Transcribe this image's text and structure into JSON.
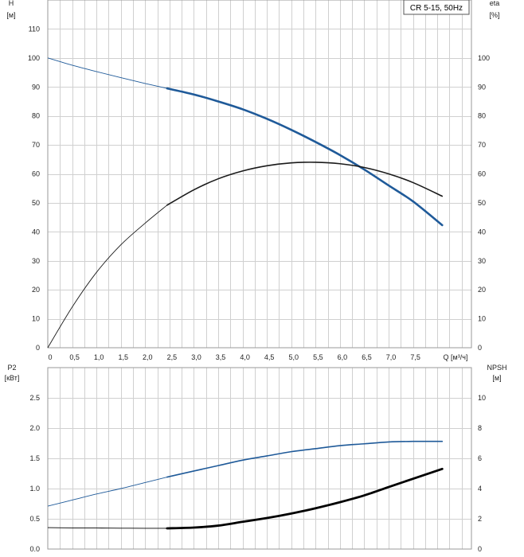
{
  "chart_data": [
    {
      "type": "line",
      "title": "",
      "legend": "CR 5-15, 50Hz",
      "legend_position": "top-right",
      "xlabel": "Q [м³/ч]",
      "ylabel_left": "H",
      "ylabel_left_unit": "[м]",
      "ylabel_right": "eta",
      "ylabel_right_unit": "[%]",
      "xlim": [
        0,
        8.7
      ],
      "ylim_left": [
        0,
        120
      ],
      "ylim_right": [
        0,
        120
      ],
      "x_ticks": [
        "0",
        "0,5",
        "1,0",
        "1,5",
        "2,0",
        "2,5",
        "3,0",
        "3,5",
        "4,0",
        "4,5",
        "5,0",
        "5,5",
        "6,0",
        "6,5",
        "7,0",
        "7,5"
      ],
      "x_tick_values": [
        0,
        0.5,
        1.0,
        1.5,
        2.0,
        2.5,
        3.0,
        3.5,
        4.0,
        4.5,
        5.0,
        5.5,
        6.0,
        6.5,
        7.0,
        7.5
      ],
      "y_ticks_left": [
        "0",
        "10",
        "20",
        "30",
        "40",
        "50",
        "60",
        "70",
        "80",
        "90",
        "100",
        "110"
      ],
      "y_ticks_right": [
        "0",
        "10",
        "20",
        "30",
        "40",
        "50",
        "60",
        "70",
        "80",
        "90",
        "100"
      ],
      "series": [
        {
          "name": "H",
          "color": "#1f5a99",
          "x": [
            0,
            0.5,
            1.0,
            1.5,
            2.0,
            2.45,
            3.0,
            3.5,
            4.0,
            4.5,
            5.0,
            5.5,
            6.0,
            6.5,
            7.0,
            7.5,
            8.1
          ],
          "y": [
            100,
            97.5,
            95.3,
            93.2,
            91.2,
            89.5,
            87.4,
            85.0,
            82.3,
            79.0,
            75.2,
            71.0,
            66.5,
            61.5,
            56.0,
            50.5,
            42.3
          ],
          "thick_from": 2.45
        },
        {
          "name": "eta",
          "color": "#1a1a1a",
          "x": [
            0,
            0.5,
            1.0,
            1.5,
            2.0,
            2.45,
            3.0,
            3.5,
            4.0,
            4.5,
            5.0,
            5.5,
            6.0,
            6.5,
            7.0,
            7.5,
            8.1
          ],
          "y": [
            0,
            14,
            26,
            35.5,
            43,
            49.2,
            54.5,
            58.3,
            61,
            62.8,
            63.8,
            64,
            63.5,
            62.2,
            60,
            57,
            52.3
          ],
          "thick_from": 2.45
        }
      ]
    },
    {
      "type": "line",
      "title": "",
      "xlim": [
        0,
        8.7
      ],
      "ylabel_left": "P2",
      "ylabel_left_unit": "[кВт]",
      "ylabel_right": "NPSH",
      "ylabel_right_unit": "[м]",
      "ylim_left": [
        0,
        3.0
      ],
      "ylim_right": [
        0,
        12
      ],
      "y_ticks_left": [
        "0.0",
        "0.5",
        "1.0",
        "1.5",
        "2.0",
        "2.5"
      ],
      "y_tick_values_left": [
        0,
        0.5,
        1.0,
        1.5,
        2.0,
        2.5
      ],
      "y_ticks_right": [
        "0",
        "2",
        "4",
        "6",
        "8",
        "10"
      ],
      "y_tick_values_right": [
        0,
        2,
        4,
        6,
        8,
        10
      ],
      "series": [
        {
          "name": "P2",
          "color": "#1f5a99",
          "axis": "left",
          "x": [
            0,
            0.5,
            1.0,
            1.5,
            2.0,
            2.45,
            3.0,
            3.5,
            4.0,
            4.5,
            5.0,
            5.5,
            6.0,
            6.5,
            7.0,
            7.5,
            8.1
          ],
          "y": [
            0.71,
            0.81,
            0.91,
            1.0,
            1.1,
            1.19,
            1.29,
            1.38,
            1.47,
            1.54,
            1.61,
            1.66,
            1.71,
            1.74,
            1.77,
            1.78,
            1.78
          ],
          "thick_from": 2.45
        },
        {
          "name": "NPSH",
          "color": "#000000",
          "axis": "right",
          "x": [
            0,
            0.5,
            1.0,
            1.5,
            2.0,
            2.45,
            3.0,
            3.5,
            4.0,
            4.5,
            5.0,
            5.5,
            6.0,
            6.5,
            7.0,
            7.5,
            8.1
          ],
          "y": [
            1.42,
            1.4,
            1.39,
            1.38,
            1.37,
            1.37,
            1.42,
            1.55,
            1.8,
            2.05,
            2.35,
            2.7,
            3.1,
            3.55,
            4.1,
            4.65,
            5.3
          ],
          "thick_from": 2.45
        }
      ]
    }
  ]
}
